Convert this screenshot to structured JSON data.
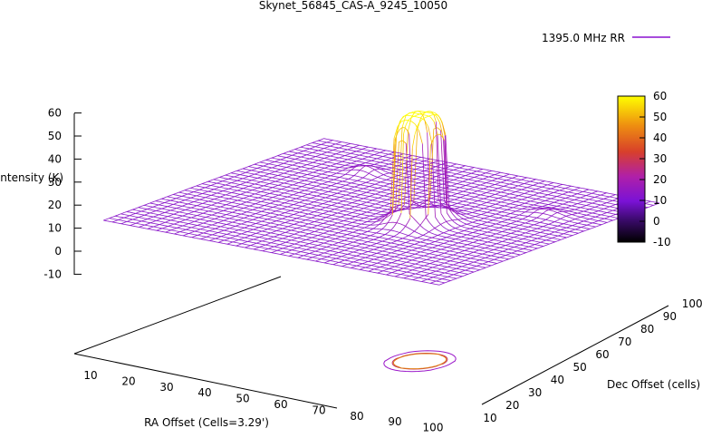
{
  "chart_data": {
    "type": "surface",
    "title": "Skynet_56845_CAS-A_9245_10050",
    "legend": {
      "entries": [
        "1395.0 MHz RR"
      ],
      "position": "top-right"
    },
    "xlabel": "RA Offset (Cells=3.29')",
    "ylabel": "Dec Offset (cells)",
    "zlabel": "Intensity (K)",
    "x_ticks": [
      "10",
      "20",
      "30",
      "40",
      "50",
      "60",
      "70",
      "80",
      "90",
      "100"
    ],
    "y_ticks": [
      "10",
      "20",
      "30",
      "40",
      "50",
      "60",
      "70",
      "80",
      "90",
      "100"
    ],
    "z_ticks": [
      "60",
      "50",
      "40",
      "30",
      "20",
      "10",
      "0",
      "-10"
    ],
    "colorbar": {
      "ticks": [
        "60",
        "50",
        "40",
        "30",
        "20",
        "10",
        "0",
        "-10"
      ],
      "range": [
        -10,
        60
      ]
    },
    "xlim": [
      5,
      100
    ],
    "ylim": [
      5,
      100
    ],
    "zlim": [
      -10,
      60
    ],
    "baseline": 13,
    "peak": {
      "x": 65,
      "y": 50,
      "value": 60
    },
    "contours": [
      {
        "level": 16,
        "color": "#9a17c9"
      },
      {
        "level": 30,
        "color": "#c02a5a"
      },
      {
        "level": 50,
        "color": "#e07d10"
      }
    ]
  }
}
